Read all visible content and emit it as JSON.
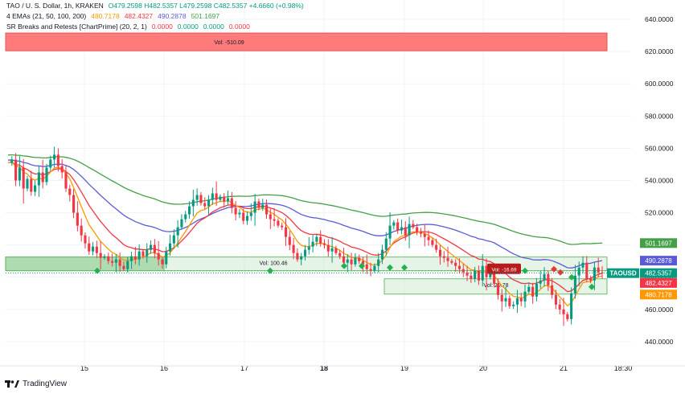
{
  "legend": {
    "line1_prefix": "TAO / U. S. Dollar, 1h, KRAKEN",
    "line1_values": "O479.2598  H482.5357  L479.2598  C482.5357  +4.6660 (+0.98%)",
    "emas_label": "4 EMAs (21, 50, 100, 200)",
    "ema_values": [
      "480.7178",
      "482.4327",
      "490.2878",
      "501.1697"
    ],
    "sr_label": "SR Breaks and Retests [ChartPrime] (20, 2, 1)",
    "sr_values": [
      "0.0000",
      "0.0000",
      "0.0000",
      "0.0000"
    ]
  },
  "footer": {
    "brand": "TradingView"
  },
  "colors": {
    "up": "#089981",
    "down": "#f23645",
    "ema21": "#ff9800",
    "ema50": "#f23645",
    "ema100": "#5b5bd6",
    "ema200": "#43a047",
    "zone_red": "#ff7b7b",
    "zone_green": "#c8e6c9",
    "zone_green_border": "#4caf50"
  },
  "chart_data": {
    "type": "candlestick",
    "symbol": "TAOUSD",
    "ylim": [
      425,
      648
    ],
    "y_ticks": [
      "640.0000",
      "620.0000",
      "600.0000",
      "580.0000",
      "560.0000",
      "540.0000",
      "520.0000",
      "500.0000",
      "480.0000",
      "460.0000",
      "440.0000"
    ],
    "x_ticks": [
      "15",
      "16",
      "17",
      "18",
      "19",
      "20",
      "21",
      "18:30"
    ],
    "close_path": [
      551,
      553,
      540,
      548,
      535,
      541,
      533,
      537,
      545,
      539,
      548,
      553,
      556,
      549,
      545,
      535,
      531,
      520,
      512,
      506,
      501,
      496,
      499,
      495,
      492,
      493,
      490,
      489,
      491,
      487,
      485,
      490,
      493,
      491,
      496,
      493,
      497,
      500,
      495,
      491,
      488,
      496,
      501,
      506,
      511,
      516,
      519,
      524,
      528,
      531,
      526,
      524,
      528,
      532,
      528,
      530,
      527,
      529,
      523,
      519,
      520,
      515,
      518,
      520,
      527,
      523,
      525,
      519,
      516,
      515,
      512,
      511,
      505,
      500,
      495,
      491,
      493,
      497,
      499,
      502,
      505,
      501,
      500,
      496,
      498,
      495,
      493,
      489,
      491,
      488,
      492,
      490,
      488,
      485,
      484,
      487,
      491,
      497,
      504,
      512,
      514,
      509,
      511,
      506,
      513,
      511,
      508,
      507,
      505,
      503,
      500,
      497,
      493,
      492,
      490,
      489,
      487,
      485,
      483,
      481,
      479,
      484,
      478,
      487,
      480,
      483,
      476,
      469,
      465,
      467,
      462,
      463,
      467,
      465,
      471,
      474,
      468,
      476,
      478,
      482,
      475,
      469,
      463,
      460,
      457,
      454,
      470,
      481,
      486,
      489,
      479,
      478,
      486,
      483,
      482.5357
    ],
    "ema_values": {
      "ema21": 480.7178,
      "ema50": 482.4327,
      "ema100": 490.2878,
      "ema200": 501.1697
    },
    "price_labels": [
      {
        "value": 501.1697,
        "text": "501.1697",
        "color": "#43a047"
      },
      {
        "value": 490.2878,
        "text": "490.2878",
        "color": "#5b5bd6"
      },
      {
        "value": 482.5357,
        "text": "TAOUSD",
        "color": "#089981"
      },
      {
        "value": 482.4327,
        "text": "482.4327",
        "color": "#f23645"
      },
      {
        "value": 480.7178,
        "text": "480.7178",
        "color": "#ff9800"
      }
    ],
    "price_value_text": "482.5357",
    "annotations": [
      {
        "text": "Vol: -510.09",
        "kind": "resistance-zone",
        "from": 620.5,
        "to": 631.5
      },
      {
        "text": "Vol: 100.46",
        "kind": "support-zone",
        "from": 484,
        "to": 492.5
      },
      {
        "text": "Vol: 20.78",
        "kind": "support-zone",
        "from": 469.5,
        "to": 479
      },
      {
        "text": "Vol: -16.69",
        "kind": "break-label",
        "at": 485
      }
    ]
  }
}
